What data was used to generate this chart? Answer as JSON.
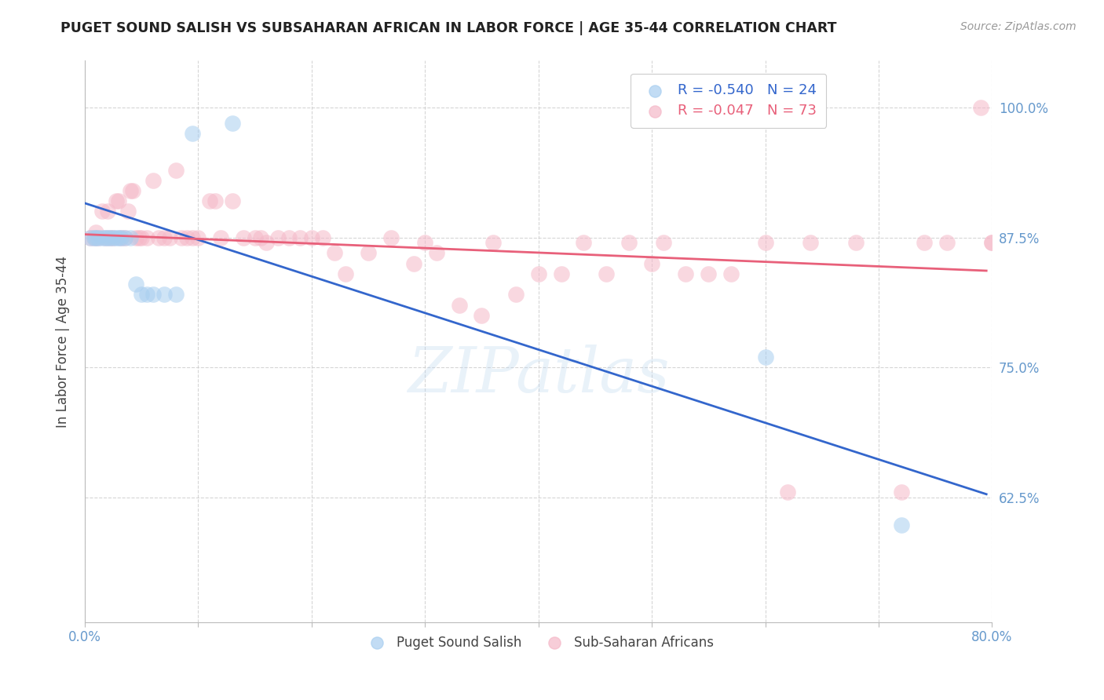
{
  "title": "PUGET SOUND SALISH VS SUBSAHARAN AFRICAN IN LABOR FORCE | AGE 35-44 CORRELATION CHART",
  "source": "Source: ZipAtlas.com",
  "ylabel": "In Labor Force | Age 35-44",
  "xlim": [
    0.0,
    0.8
  ],
  "ylim": [
    0.505,
    1.045
  ],
  "yticks": [
    0.625,
    0.75,
    0.875,
    1.0
  ],
  "ytick_labels": [
    "62.5%",
    "75.0%",
    "87.5%",
    "100.0%"
  ],
  "xticks": [
    0.0,
    0.1,
    0.2,
    0.3,
    0.4,
    0.5,
    0.6,
    0.7,
    0.8
  ],
  "xtick_labels": [
    "0.0%",
    "",
    "",
    "",
    "",
    "",
    "",
    "",
    "80.0%"
  ],
  "blue_color": "#A8CEF0",
  "pink_color": "#F5B8C8",
  "blue_line_color": "#3366CC",
  "pink_line_color": "#E8607A",
  "blue_label": "Puget Sound Salish",
  "pink_label": "Sub-Saharan Africans",
  "R_blue": -0.54,
  "N_blue": 24,
  "R_pink": -0.047,
  "N_pink": 73,
  "background_color": "#FFFFFF",
  "grid_color": "#CCCCCC",
  "axis_color": "#BBBBBB",
  "tick_label_color": "#6699CC",
  "watermark": "ZIPatlas",
  "blue_line_x0": 0.0,
  "blue_line_y0": 0.908,
  "blue_line_x1": 0.795,
  "blue_line_y1": 0.628,
  "pink_line_x0": 0.0,
  "pink_line_y0": 0.878,
  "pink_line_x1": 0.795,
  "pink_line_y1": 0.843,
  "blue_x": [
    0.005,
    0.008,
    0.01,
    0.012,
    0.015,
    0.018,
    0.02,
    0.022,
    0.025,
    0.028,
    0.03,
    0.032,
    0.035,
    0.04,
    0.045,
    0.05,
    0.055,
    0.06,
    0.07,
    0.08,
    0.095,
    0.13,
    0.6,
    0.72
  ],
  "blue_y": [
    0.875,
    0.875,
    0.875,
    0.875,
    0.875,
    0.875,
    0.875,
    0.875,
    0.875,
    0.875,
    0.875,
    0.875,
    0.875,
    0.875,
    0.83,
    0.82,
    0.82,
    0.82,
    0.82,
    0.82,
    0.975,
    0.985,
    0.76,
    0.598
  ],
  "pink_x": [
    0.005,
    0.008,
    0.01,
    0.012,
    0.015,
    0.018,
    0.02,
    0.022,
    0.025,
    0.028,
    0.03,
    0.032,
    0.035,
    0.038,
    0.04,
    0.042,
    0.045,
    0.048,
    0.05,
    0.055,
    0.06,
    0.065,
    0.07,
    0.075,
    0.08,
    0.085,
    0.09,
    0.095,
    0.1,
    0.11,
    0.115,
    0.12,
    0.13,
    0.14,
    0.15,
    0.155,
    0.16,
    0.17,
    0.18,
    0.19,
    0.2,
    0.21,
    0.22,
    0.23,
    0.25,
    0.27,
    0.29,
    0.3,
    0.31,
    0.33,
    0.35,
    0.36,
    0.38,
    0.4,
    0.42,
    0.44,
    0.46,
    0.48,
    0.5,
    0.51,
    0.53,
    0.55,
    0.57,
    0.6,
    0.62,
    0.64,
    0.68,
    0.72,
    0.74,
    0.76,
    0.79,
    0.8,
    0.8
  ],
  "pink_y": [
    0.875,
    0.875,
    0.88,
    0.875,
    0.9,
    0.875,
    0.9,
    0.875,
    0.875,
    0.91,
    0.91,
    0.875,
    0.875,
    0.9,
    0.92,
    0.92,
    0.875,
    0.875,
    0.875,
    0.875,
    0.93,
    0.875,
    0.875,
    0.875,
    0.94,
    0.875,
    0.875,
    0.875,
    0.875,
    0.91,
    0.91,
    0.875,
    0.91,
    0.875,
    0.875,
    0.875,
    0.87,
    0.875,
    0.875,
    0.875,
    0.875,
    0.875,
    0.86,
    0.84,
    0.86,
    0.875,
    0.85,
    0.87,
    0.86,
    0.81,
    0.8,
    0.87,
    0.82,
    0.84,
    0.84,
    0.87,
    0.84,
    0.87,
    0.85,
    0.87,
    0.84,
    0.84,
    0.84,
    0.87,
    0.63,
    0.87,
    0.87,
    0.63,
    0.87,
    0.87,
    1.0,
    0.87,
    0.87
  ]
}
